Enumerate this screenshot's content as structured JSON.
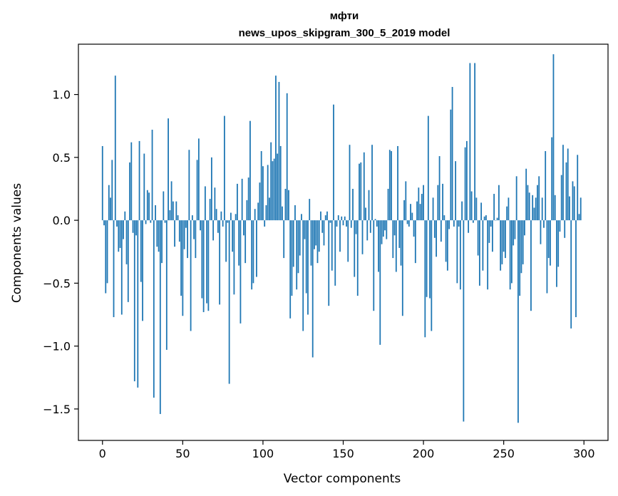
{
  "chart_data": {
    "type": "bar",
    "title": "мфти",
    "subtitle": "news_upos_skipgram_300_5_2019 model",
    "xlabel": "Vector components",
    "ylabel": "Components values",
    "xlim": [
      -15,
      315
    ],
    "ylim": [
      -1.75,
      1.4
    ],
    "xticks": [
      0,
      50,
      100,
      150,
      200,
      250,
      300
    ],
    "yticks": [
      1.0,
      0.5,
      0.0,
      -0.5,
      -1.0,
      -1.5
    ],
    "ytick_labels": [
      "1.0",
      "0.5",
      "0.0",
      "−0.5",
      "−1.0",
      "−1.5"
    ],
    "grid": false,
    "bar_color": "#1f77b4",
    "values": [
      0.59,
      -0.04,
      -0.58,
      -0.5,
      0.28,
      0.18,
      0.48,
      -0.77,
      1.15,
      -0.05,
      -0.25,
      -0.22,
      -0.75,
      -0.15,
      0.07,
      -0.35,
      -0.65,
      0.46,
      0.62,
      -0.1,
      -1.28,
      -0.12,
      -1.33,
      0.63,
      -0.49,
      -0.8,
      0.53,
      -0.03,
      0.24,
      0.22,
      -0.02,
      0.72,
      -1.41,
      0.12,
      -0.21,
      -0.25,
      -1.54,
      -0.34,
      0.23,
      -0.02,
      -1.03,
      0.81,
      0.08,
      0.31,
      0.15,
      -0.21,
      0.15,
      0.04,
      -0.17,
      -0.6,
      -0.76,
      -0.23,
      -0.06,
      -0.3,
      0.56,
      -0.88,
      0.04,
      -0.15,
      -0.3,
      0.48,
      0.65,
      -0.08,
      -0.62,
      -0.73,
      0.27,
      -0.66,
      -0.72,
      0.17,
      0.5,
      -0.16,
      0.26,
      0.09,
      -0.1,
      -0.67,
      0.07,
      -0.05,
      0.83,
      -0.33,
      -0.02,
      -1.3,
      0.06,
      -0.25,
      -0.59,
      0.05,
      0.29,
      -0.36,
      -0.82,
      0.33,
      -0.12,
      -0.34,
      0.16,
      0.34,
      0.79,
      -0.55,
      -0.5,
      0.09,
      -0.45,
      0.14,
      0.3,
      0.55,
      0.43,
      -0.05,
      0.12,
      0.44,
      0.18,
      0.62,
      0.47,
      0.49,
      1.15,
      0.53,
      1.1,
      0.59,
      0.11,
      -0.3,
      0.25,
      1.01,
      0.24,
      -0.78,
      -0.6,
      -0.37,
      0.12,
      -0.55,
      -0.42,
      -0.28,
      0.05,
      -0.88,
      -0.15,
      -0.58,
      -0.75,
      0.17,
      -0.36,
      -1.09,
      -0.23,
      -0.2,
      -0.34,
      -0.25,
      0.07,
      -0.1,
      -0.2,
      0.04,
      0.07,
      -0.68,
      -0.02,
      -0.4,
      0.92,
      -0.52,
      -0.05,
      0.04,
      -0.25,
      0.03,
      -0.04,
      0.03,
      -0.05,
      -0.33,
      0.6,
      -0.06,
      0.25,
      -0.45,
      -0.11,
      -0.6,
      0.45,
      0.46,
      -0.27,
      0.54,
      0.1,
      -0.16,
      0.24,
      -0.1,
      0.6,
      -0.72,
      0.01,
      -0.05,
      -0.41,
      -0.99,
      -0.19,
      -0.13,
      -0.08,
      -0.15,
      0.25,
      0.56,
      0.55,
      -0.3,
      -0.12,
      -0.41,
      0.59,
      -0.22,
      -0.36,
      -0.76,
      0.16,
      0.31,
      -0.03,
      -0.05,
      0.13,
      0.06,
      -0.13,
      -0.34,
      0.15,
      0.26,
      0.13,
      0.21,
      0.28,
      -0.93,
      -0.61,
      0.83,
      -0.62,
      -0.88,
      0.18,
      -0.14,
      -0.29,
      0.28,
      0.51,
      -0.17,
      0.29,
      0.04,
      -0.33,
      -0.4,
      -0.07,
      0.88,
      1.06,
      -0.05,
      0.47,
      -0.5,
      -0.05,
      -0.55,
      0.15,
      -1.6,
      0.58,
      0.63,
      -0.1,
      1.25,
      0.23,
      -0.02,
      1.25,
      0.18,
      -0.28,
      -0.52,
      0.14,
      -0.4,
      0.03,
      0.04,
      -0.55,
      -0.18,
      -0.05,
      -0.25,
      0.21,
      0.0,
      0.02,
      0.28,
      -0.4,
      -0.35,
      -0.25,
      -0.3,
      0.11,
      0.18,
      -0.55,
      -0.5,
      -0.2,
      -0.15,
      0.35,
      -1.61,
      -0.6,
      -0.42,
      -0.35,
      -0.12,
      0.41,
      0.28,
      0.22,
      -0.72,
      0.2,
      0.1,
      0.18,
      0.28,
      0.35,
      -0.19,
      0.18,
      -0.06,
      0.55,
      -0.58,
      -0.3,
      -0.36,
      0.66,
      1.32,
      0.2,
      -0.53,
      -0.37,
      -0.09,
      0.36,
      0.6,
      -0.14,
      0.46,
      0.57,
      0.19,
      -0.86,
      0.31,
      0.27,
      -0.77,
      0.52,
      0.05,
      0.18
    ]
  }
}
